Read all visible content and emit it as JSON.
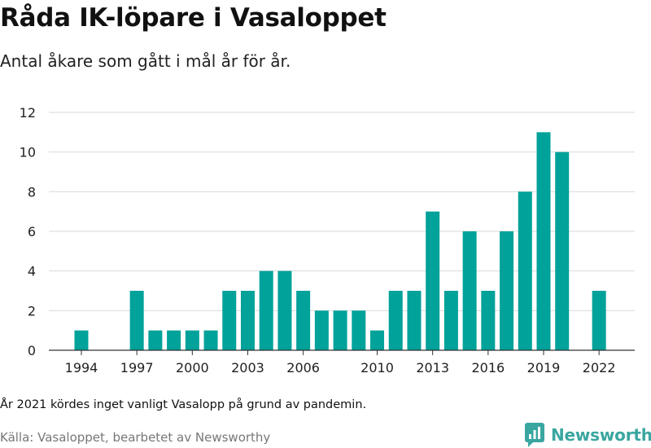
{
  "header": {
    "title": "Råda IK-löpare i Vasaloppet",
    "subtitle": "Antal åkare som gått i mål år för år."
  },
  "footer": {
    "note": "År 2021 kördes inget vanligt Vasalopp på grund av pandemin.",
    "source": "Källa: Vasaloppet, bearbetet av Newsworthy",
    "logo_text": "Newsworthy"
  },
  "colors": {
    "bar": "#00a29a",
    "grid": "#d9d9d9",
    "axis": "#333333",
    "logo": "#3aa6a0"
  },
  "chart_data": {
    "type": "bar",
    "title": "Råda IK-löpare i Vasaloppet",
    "subtitle": "Antal åkare som gått i mål år för år.",
    "xlabel": "",
    "ylabel": "",
    "categories": [
      1994,
      1995,
      1996,
      1997,
      1998,
      1999,
      2000,
      2001,
      2002,
      2003,
      2004,
      2005,
      2006,
      2007,
      2008,
      2009,
      2010,
      2011,
      2012,
      2013,
      2014,
      2015,
      2016,
      2017,
      2018,
      2019,
      2020,
      2021,
      2022
    ],
    "values": [
      1,
      0,
      0,
      3,
      1,
      1,
      1,
      1,
      3,
      3,
      4,
      4,
      3,
      2,
      2,
      2,
      1,
      3,
      3,
      7,
      3,
      6,
      3,
      6,
      8,
      11,
      10,
      0,
      3
    ],
    "x_ticks": [
      1994,
      1997,
      2000,
      2003,
      2006,
      2010,
      2013,
      2016,
      2019,
      2022
    ],
    "y_ticks": [
      0,
      2,
      4,
      6,
      8,
      10,
      12
    ],
    "ylim": [
      0,
      12
    ],
    "grid": true,
    "legend": "none"
  }
}
